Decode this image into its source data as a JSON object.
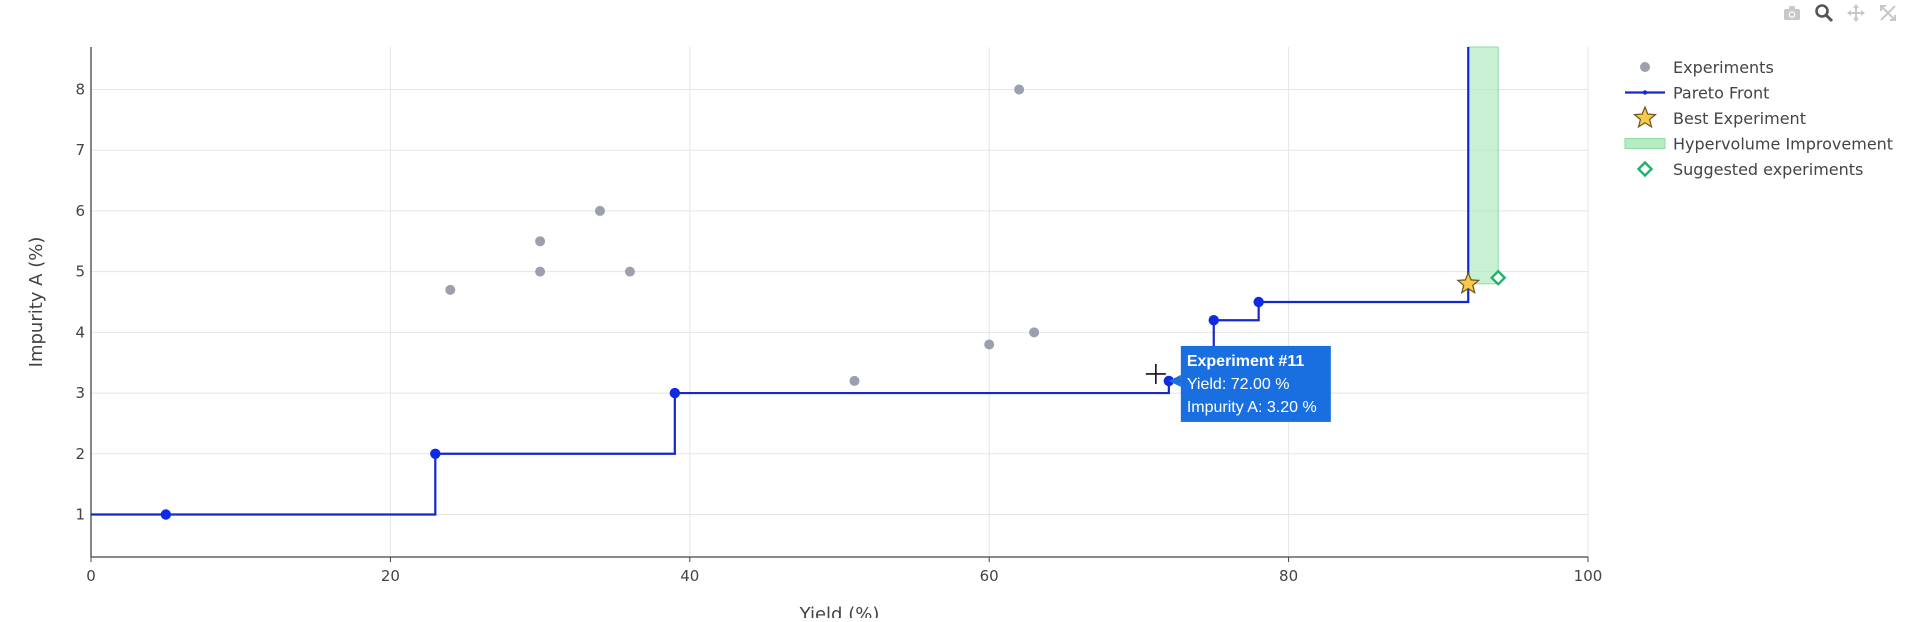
{
  "toolbar": {
    "icons": [
      "camera-icon",
      "zoom-icon",
      "pan-icon",
      "autoscale-icon"
    ]
  },
  "colors": {
    "experiments": "#9c9fad",
    "pareto": "#1428cc",
    "pareto_point": "#0d2be6",
    "best_fill": "#f7c948",
    "best_stroke": "#6b5420",
    "hv_fill": "#b6ebc4",
    "hv_stroke": "#8edba6",
    "suggested": "#21b36b",
    "tooltip_bg": "#1a6fe0",
    "grid": "#e5e5e5"
  },
  "chart_data": {
    "type": "scatter",
    "xlabel": "Yield (%)",
    "ylabel": "Impurity A (%)",
    "xlim": [
      0,
      100
    ],
    "ylim": [
      0.3,
      8.7
    ],
    "x_ticks": [
      0,
      20,
      40,
      60,
      80,
      100
    ],
    "y_ticks": [
      1,
      2,
      3,
      4,
      5,
      6,
      7,
      8
    ],
    "grid": true,
    "legend_position": "top-right",
    "series": [
      {
        "name": "Experiments",
        "kind": "markers",
        "points": [
          [
            24,
            4.7
          ],
          [
            30,
            5.5
          ],
          [
            30,
            5.0
          ],
          [
            34,
            6.0
          ],
          [
            36,
            5.0
          ],
          [
            51,
            3.2
          ],
          [
            60,
            3.8
          ],
          [
            62,
            8.0
          ],
          [
            63,
            4.0
          ]
        ]
      },
      {
        "name": "Pareto Front",
        "kind": "step-line",
        "points": [
          [
            5,
            1.0
          ],
          [
            23,
            2.0
          ],
          [
            39,
            3.0
          ],
          [
            72,
            3.2
          ],
          [
            75,
            4.2
          ],
          [
            78,
            4.5
          ],
          [
            92,
            4.8
          ]
        ]
      },
      {
        "name": "Best Experiment",
        "kind": "star",
        "points": [
          [
            92,
            4.8
          ]
        ]
      },
      {
        "name": "Hypervolume Improvement",
        "kind": "region",
        "x_range": [
          92,
          94
        ],
        "y_from": 4.8
      },
      {
        "name": "Suggested experiments",
        "kind": "open-diamond",
        "points": [
          [
            94,
            4.9
          ]
        ]
      }
    ],
    "hover": {
      "title": "Experiment #11",
      "line1": "Yield: 72.00 %",
      "line2": "Impurity A: 3.20 %",
      "point": [
        72,
        3.2
      ]
    }
  }
}
